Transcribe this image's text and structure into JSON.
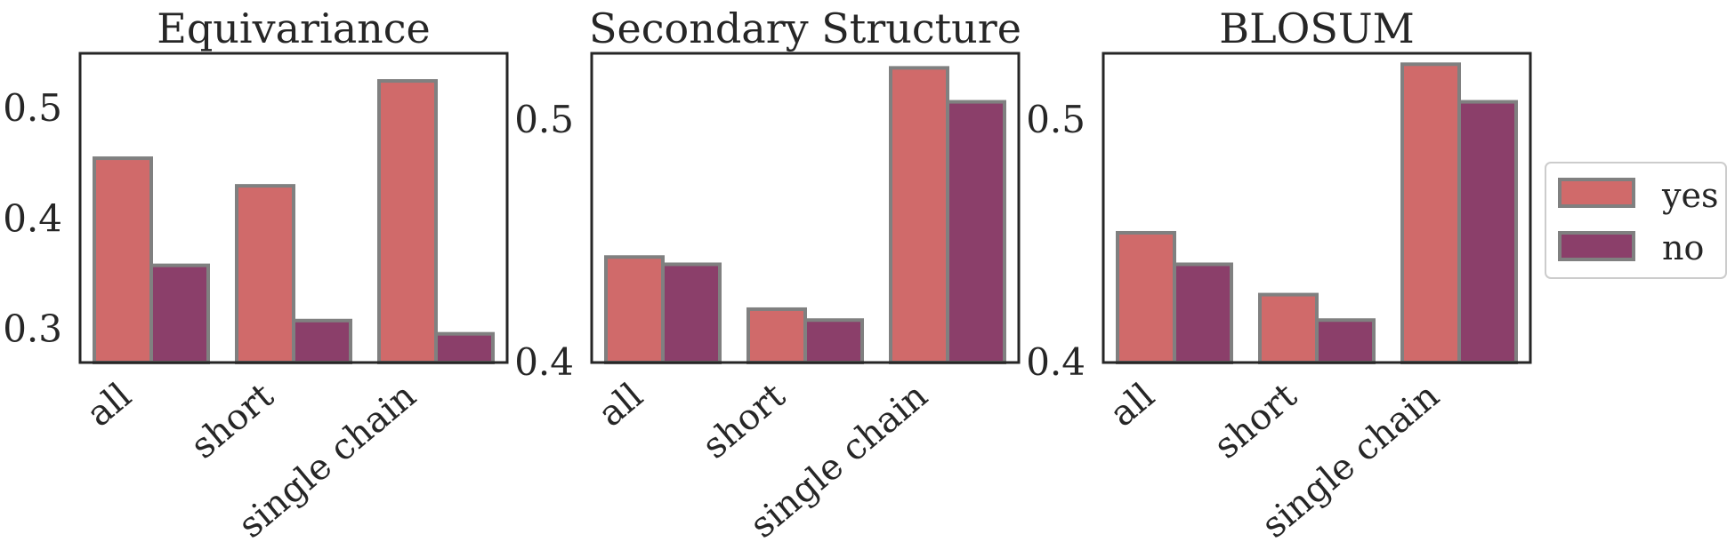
{
  "chart_data": [
    {
      "type": "bar",
      "title": "Equivariance",
      "categories": [
        "all",
        "short",
        "single chain"
      ],
      "ylim": [
        0.27,
        0.55
      ],
      "yticks": [
        "0.3",
        "0.4",
        "0.5"
      ],
      "series": [
        {
          "name": "yes",
          "values": [
            0.455,
            0.43,
            0.525
          ]
        },
        {
          "name": "no",
          "values": [
            0.358,
            0.308,
            0.296
          ]
        }
      ]
    },
    {
      "type": "bar",
      "title": "Secondary Structure",
      "categories": [
        "all",
        "short",
        "single chain"
      ],
      "ylim": [
        0.4,
        0.5275
      ],
      "yticks": [
        "0.4",
        "0.5"
      ],
      "series": [
        {
          "name": "yes",
          "values": [
            0.4435,
            0.422,
            0.5215
          ]
        },
        {
          "name": "no",
          "values": [
            0.4405,
            0.4175,
            0.5075
          ]
        }
      ]
    },
    {
      "type": "bar",
      "title": "BLOSUM",
      "categories": [
        "all",
        "short",
        "single chain"
      ],
      "ylim": [
        0.4,
        0.5275
      ],
      "yticks": [
        "0.4",
        "0.5"
      ],
      "series": [
        {
          "name": "yes",
          "values": [
            0.4535,
            0.428,
            0.523
          ]
        },
        {
          "name": "no",
          "values": [
            0.4405,
            0.4175,
            0.5075
          ]
        }
      ]
    }
  ],
  "legend": {
    "placement": "right",
    "items": [
      {
        "label": "yes",
        "color": "#d06a6a"
      },
      {
        "label": "no",
        "color": "#8b3f6a"
      }
    ]
  },
  "colors": {
    "yes": "#d06a6a",
    "no": "#8b3f6a",
    "edge": "#808080"
  }
}
